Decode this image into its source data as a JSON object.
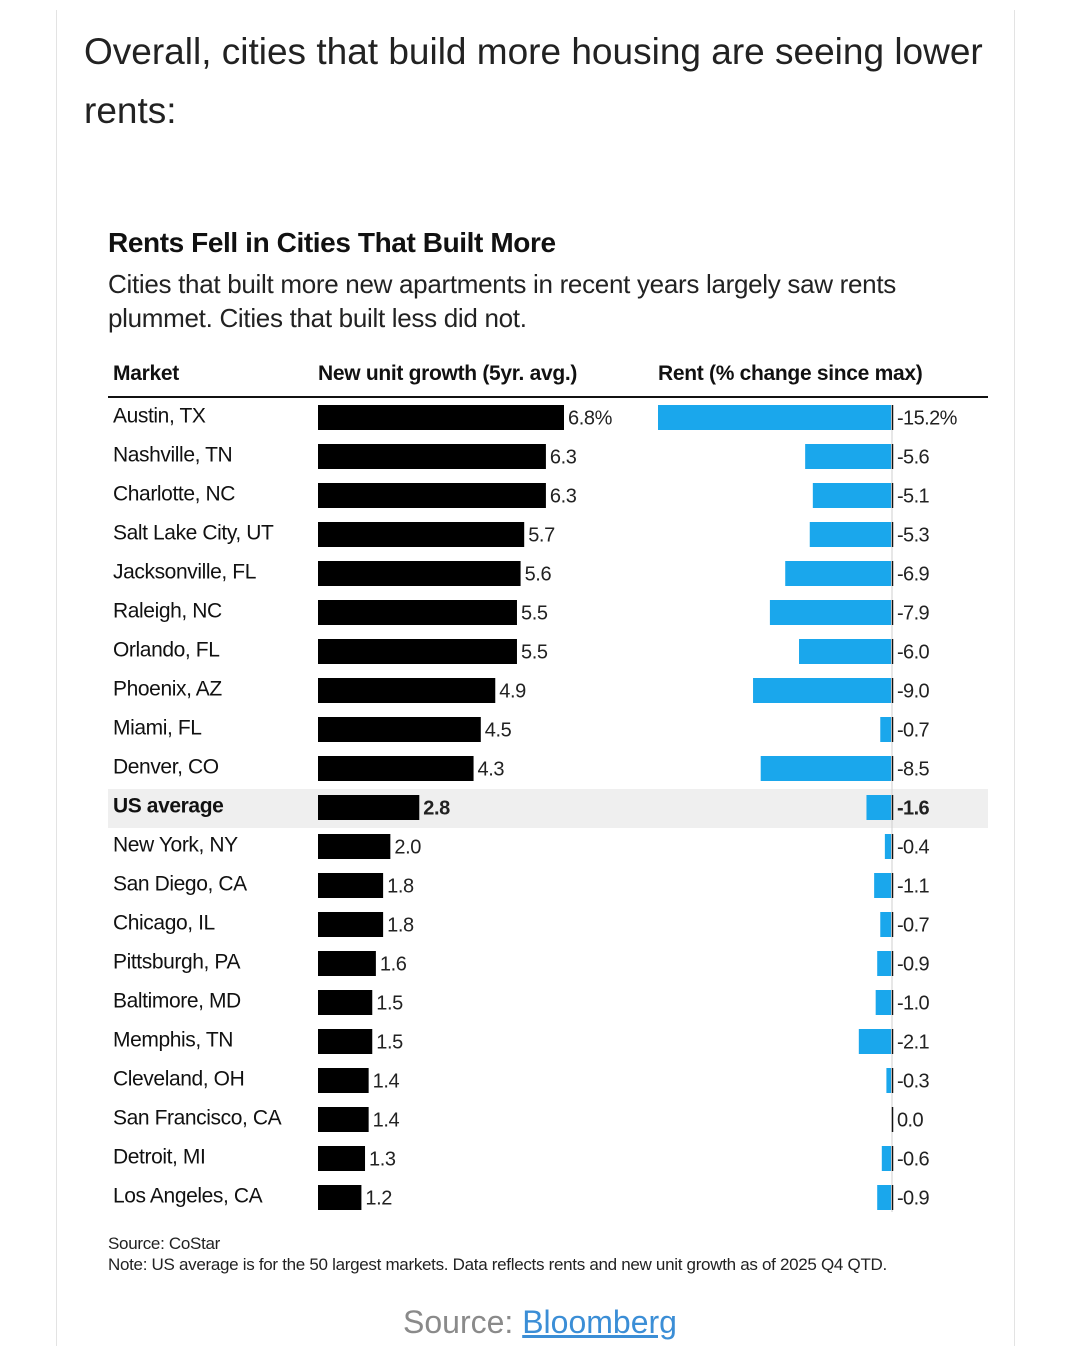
{
  "intro_text": "Overall, cities that build more housing are seeing lower rents:",
  "chart_data": {
    "type": "bar",
    "title": "Rents Fell in Cities That Built More",
    "subtitle": "Cities that built more new apartments in recent years largely saw rents plummet. Cities that built less did not.",
    "columns": {
      "market": "Market",
      "growth": "New unit growth (5yr. avg.)",
      "rent": "Rent (% change since max)"
    },
    "categories": [
      "Austin, TX",
      "Nashville, TN",
      "Charlotte, NC",
      "Salt Lake City, UT",
      "Jacksonville, FL",
      "Raleigh, NC",
      "Orlando, FL",
      "Phoenix, AZ",
      "Miami, FL",
      "Denver, CO",
      "US average",
      "New York, NY",
      "San Diego, CA",
      "Chicago, IL",
      "Pittsburgh, PA",
      "Baltimore, MD",
      "Memphis, TN",
      "Cleveland, OH",
      "San Francisco, CA",
      "Detroit, MI",
      "Los Angeles, CA"
    ],
    "highlight": "US average",
    "series": [
      {
        "name": "New unit growth (5yr. avg.)",
        "values": [
          6.8,
          6.3,
          6.3,
          5.7,
          5.6,
          5.5,
          5.5,
          4.9,
          4.5,
          4.3,
          2.8,
          2.0,
          1.8,
          1.8,
          1.6,
          1.5,
          1.5,
          1.4,
          1.4,
          1.3,
          1.2
        ],
        "labels": [
          "6.8%",
          "6.3",
          "6.3",
          "5.7",
          "5.6",
          "5.5",
          "5.5",
          "4.9",
          "4.5",
          "4.3",
          "2.8",
          "2.0",
          "1.8",
          "1.8",
          "1.6",
          "1.5",
          "1.5",
          "1.4",
          "1.4",
          "1.3",
          "1.2"
        ],
        "color": "#000000"
      },
      {
        "name": "Rent (% change since max)",
        "values": [
          -15.2,
          -5.6,
          -5.1,
          -5.3,
          -6.9,
          -7.9,
          -6.0,
          -9.0,
          -0.7,
          -8.5,
          -1.6,
          -0.4,
          -1.1,
          -0.7,
          -0.9,
          -1.0,
          -2.1,
          -0.3,
          0.0,
          -0.6,
          -0.9
        ],
        "labels": [
          "-15.2%",
          "-5.6",
          "-5.1",
          "-5.3",
          "-6.9",
          "-7.9",
          "-6.0",
          "-9.0",
          "-0.7",
          "-8.5",
          "-1.6",
          "-0.4",
          "-1.1",
          "-0.7",
          "-0.9",
          "-1.0",
          "-2.1",
          "-0.3",
          "0.0",
          "-0.6",
          "-0.9"
        ],
        "color": "#1aa7ec"
      }
    ],
    "source": "Source: CoStar",
    "note": "Note: US average is for the 50 largest markets. Data reflects rents and new unit growth as of 2025 Q4 QTD."
  },
  "footer": {
    "label": "Source: ",
    "link_text": "Bloomberg",
    "link_color": "#3b8ed6"
  }
}
